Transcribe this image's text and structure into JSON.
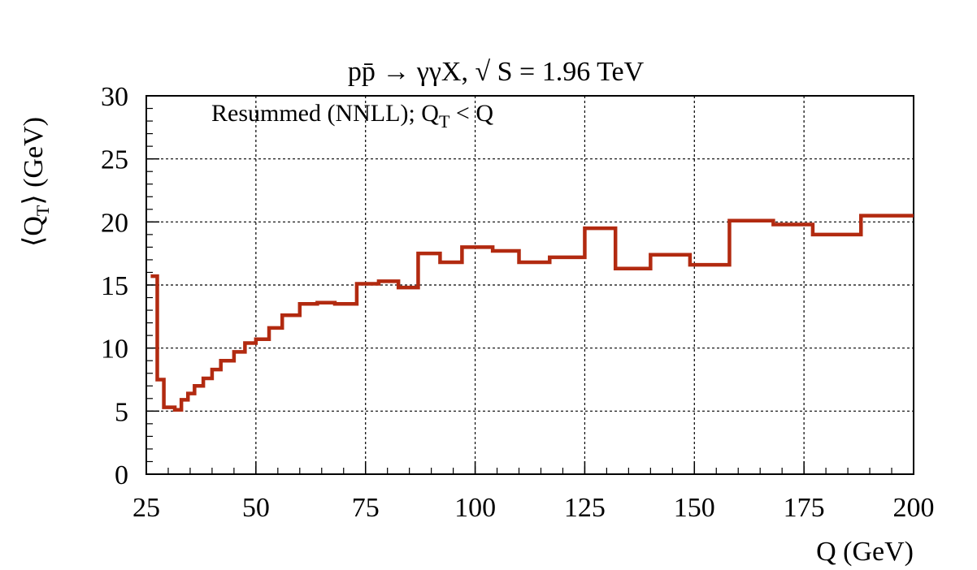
{
  "chart_data": {
    "type": "line",
    "style": "step-histogram",
    "title": "pp̄ → γγX, √ S = 1.96 TeV",
    "annotation": {
      "main": "Resummed (NNLL); Q",
      "sub": "T",
      "tail": " < Q"
    },
    "xlabel": "Q (GeV)",
    "ylabel": {
      "open": "⟨Q",
      "sub": "T",
      "close": "⟩ (GeV)"
    },
    "xlim": [
      25,
      200
    ],
    "ylim": [
      0,
      30
    ],
    "xticks": [
      "25",
      "50",
      "75",
      "100",
      "125",
      "150",
      "175",
      "200"
    ],
    "yticks": [
      "0",
      "5",
      "10",
      "15",
      "20",
      "25",
      "30"
    ],
    "grid": true,
    "series": [
      {
        "color": "#b22a10",
        "bin_edges": [
          26,
          27.5,
          29,
          31.5,
          33,
          34.5,
          36,
          38,
          40,
          42,
          45,
          47.5,
          50,
          53,
          56,
          60,
          64,
          68,
          73,
          78,
          82.5,
          87,
          92,
          97,
          104,
          110,
          117,
          125,
          132,
          140,
          149,
          158,
          168,
          177,
          188,
          200
        ],
        "values": [
          15.7,
          7.5,
          5.3,
          5.1,
          5.9,
          6.4,
          7.0,
          7.6,
          8.3,
          9.0,
          9.7,
          10.4,
          10.7,
          11.6,
          12.6,
          13.5,
          13.6,
          13.5,
          15.1,
          15.3,
          14.8,
          17.5,
          16.8,
          18.0,
          17.7,
          16.8,
          17.2,
          19.5,
          16.3,
          17.4,
          16.6,
          20.1,
          19.8,
          19.0,
          20.5
        ]
      }
    ]
  }
}
